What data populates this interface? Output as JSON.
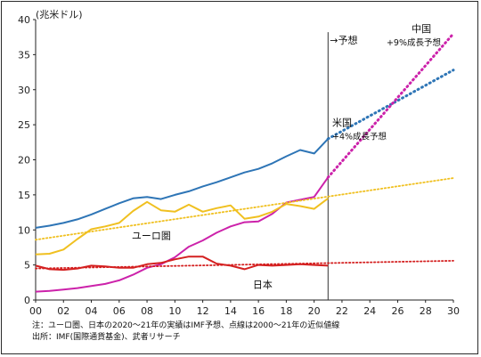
{
  "chart_data": {
    "type": "line",
    "ylabel": "(兆米ドル)",
    "ylim": [
      0,
      40
    ],
    "xlim": [
      2000,
      2030
    ],
    "y_ticks": [
      0,
      5,
      10,
      15,
      20,
      25,
      30,
      35,
      40
    ],
    "x_ticks": [
      2000,
      2002,
      2004,
      2006,
      2008,
      2010,
      2012,
      2014,
      2016,
      2018,
      2020,
      2022,
      2024,
      2026,
      2028,
      2030
    ],
    "x_tick_labels": [
      "00",
      "02",
      "04",
      "06",
      "08",
      "10",
      "12",
      "14",
      "16",
      "18",
      "20",
      "22",
      "24",
      "26",
      "28",
      "30"
    ],
    "forecast_marker": {
      "x": 2021,
      "label": "→予想"
    },
    "grid": false,
    "series": [
      {
        "name": "米国",
        "color": "#2e75b6",
        "x": [
          2000,
          2001,
          2002,
          2003,
          2004,
          2005,
          2006,
          2007,
          2008,
          2009,
          2010,
          2011,
          2012,
          2013,
          2014,
          2015,
          2016,
          2017,
          2018,
          2019,
          2020,
          2021
        ],
        "values": [
          10.3,
          10.6,
          11.0,
          11.5,
          12.2,
          13.0,
          13.8,
          14.5,
          14.7,
          14.4,
          15.0,
          15.5,
          16.2,
          16.8,
          17.5,
          18.2,
          18.7,
          19.5,
          20.5,
          21.4,
          20.9,
          23.0
        ],
        "forecast": {
          "x": [
            2021,
            2030
          ],
          "values": [
            23.0,
            32.8
          ],
          "label": "+4%成長予想"
        }
      },
      {
        "name": "中国",
        "color": "#cc22aa",
        "x": [
          2000,
          2001,
          2002,
          2003,
          2004,
          2005,
          2006,
          2007,
          2008,
          2009,
          2010,
          2011,
          2012,
          2013,
          2014,
          2015,
          2016,
          2017,
          2018,
          2019,
          2020,
          2021
        ],
        "values": [
          1.2,
          1.3,
          1.5,
          1.7,
          2.0,
          2.3,
          2.8,
          3.6,
          4.6,
          5.1,
          6.1,
          7.6,
          8.5,
          9.6,
          10.5,
          11.1,
          11.2,
          12.3,
          13.9,
          14.3,
          14.7,
          17.5
        ],
        "forecast": {
          "x": [
            2021,
            2030
          ],
          "values": [
            17.5,
            38.0
          ],
          "label": "+9%成長予想"
        }
      },
      {
        "name": "ユーロ圏",
        "color": "#f0c020",
        "x": [
          2000,
          2001,
          2002,
          2003,
          2004,
          2005,
          2006,
          2007,
          2008,
          2009,
          2010,
          2011,
          2012,
          2013,
          2014,
          2015,
          2016,
          2017,
          2018,
          2019,
          2020,
          2021
        ],
        "values": [
          6.5,
          6.6,
          7.2,
          8.7,
          10.1,
          10.5,
          11.0,
          12.7,
          14.0,
          12.8,
          12.6,
          13.6,
          12.6,
          13.1,
          13.5,
          11.6,
          11.9,
          12.6,
          13.7,
          13.4,
          13.0,
          14.5
        ],
        "trend": {
          "x": [
            2000,
            2030
          ],
          "values": [
            8.6,
            17.4
          ]
        }
      },
      {
        "name": "日本",
        "color": "#d42020",
        "x": [
          2000,
          2001,
          2002,
          2003,
          2004,
          2005,
          2006,
          2007,
          2008,
          2009,
          2010,
          2011,
          2012,
          2013,
          2014,
          2015,
          2016,
          2017,
          2018,
          2019,
          2020,
          2021
        ],
        "values": [
          4.9,
          4.4,
          4.3,
          4.5,
          4.9,
          4.8,
          4.6,
          4.6,
          5.1,
          5.3,
          5.8,
          6.2,
          6.2,
          5.2,
          4.9,
          4.4,
          5.0,
          4.9,
          5.0,
          5.1,
          5.0,
          4.9
        ],
        "trend": {
          "x": [
            2000,
            2030
          ],
          "values": [
            4.5,
            5.6
          ]
        }
      }
    ],
    "annotations": {
      "japan": "日本",
      "euro": "ユーロ圏",
      "us": "米国",
      "us_growth": "+4%成長予想",
      "china": "中国",
      "china_growth": "+9%成長予想"
    }
  },
  "notes": {
    "line1": "注：ユーロ圏、日本の2020～21年の実績はIMF予想、点線は2000～21年の近似値線",
    "line2": "出所：IMF(国際通貨基金)、武者リサーチ"
  }
}
